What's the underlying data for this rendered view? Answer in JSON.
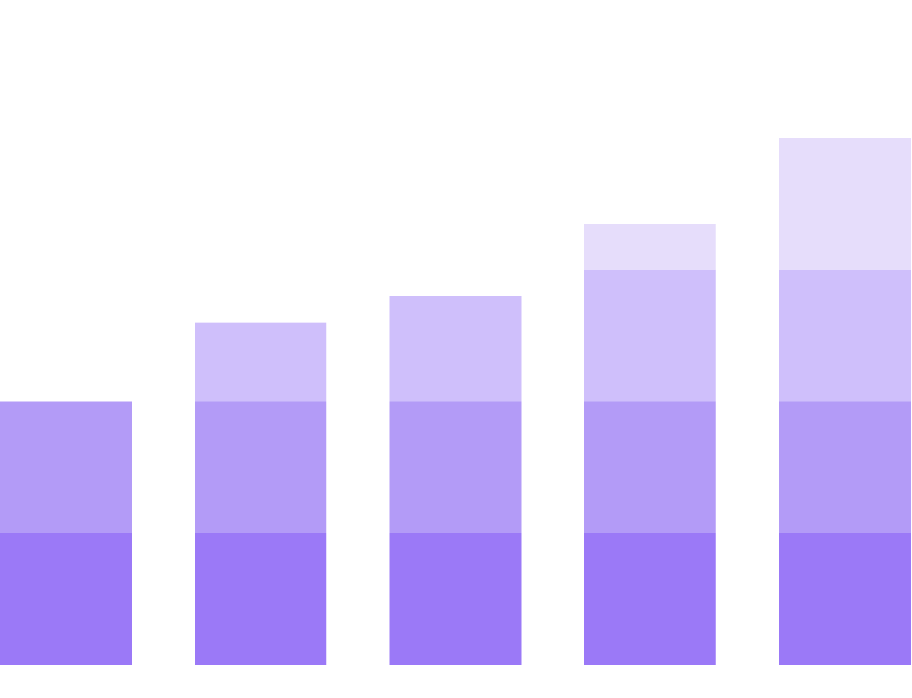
{
  "chart_data": {
    "type": "bar",
    "stacked": true,
    "categories": [
      "",
      "",
      "",
      "",
      ""
    ],
    "ylim": [
      0,
      5.05
    ],
    "grid": false,
    "legend": "none",
    "series": [
      {
        "values": [
          1,
          1,
          1,
          1,
          1
        ],
        "color": "#9b79f7"
      },
      {
        "values": [
          1,
          1,
          1,
          1,
          1
        ],
        "color": "#b39bf7"
      },
      {
        "values": [
          0,
          0.6,
          0.8,
          1,
          1
        ],
        "color": "#cfbffb"
      },
      {
        "values": [
          0,
          0,
          0,
          0.35,
          1
        ],
        "color": "#e6ddfb"
      }
    ]
  }
}
